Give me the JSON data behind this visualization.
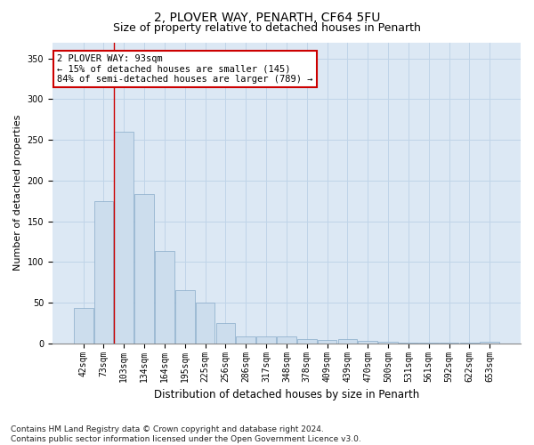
{
  "title1": "2, PLOVER WAY, PENARTH, CF64 5FU",
  "title2": "Size of property relative to detached houses in Penarth",
  "xlabel": "Distribution of detached houses by size in Penarth",
  "ylabel": "Number of detached properties",
  "categories": [
    "42sqm",
    "73sqm",
    "103sqm",
    "134sqm",
    "164sqm",
    "195sqm",
    "225sqm",
    "256sqm",
    "286sqm",
    "317sqm",
    "348sqm",
    "378sqm",
    "409sqm",
    "439sqm",
    "470sqm",
    "500sqm",
    "531sqm",
    "561sqm",
    "592sqm",
    "622sqm",
    "653sqm"
  ],
  "values": [
    44,
    175,
    260,
    183,
    114,
    65,
    50,
    25,
    9,
    8,
    9,
    5,
    4,
    5,
    3,
    2,
    1,
    1,
    1,
    1,
    2
  ],
  "bar_color": "#ccdded",
  "bar_edge_color": "#88aac8",
  "vline_x": 1.5,
  "vline_color": "#cc0000",
  "annotation_text": "2 PLOVER WAY: 93sqm\n← 15% of detached houses are smaller (145)\n84% of semi-detached houses are larger (789) →",
  "annotation_box_color": "#ffffff",
  "annotation_box_edge_color": "#cc0000",
  "ylim": [
    0,
    370
  ],
  "yticks": [
    0,
    50,
    100,
    150,
    200,
    250,
    300,
    350
  ],
  "grid_color": "#c0d4e8",
  "bg_color": "#dce8f4",
  "footnote": "Contains HM Land Registry data © Crown copyright and database right 2024.\nContains public sector information licensed under the Open Government Licence v3.0.",
  "title1_fontsize": 10,
  "title2_fontsize": 9,
  "xlabel_fontsize": 8.5,
  "ylabel_fontsize": 8,
  "tick_fontsize": 7,
  "annotation_fontsize": 7.5,
  "footnote_fontsize": 6.5
}
